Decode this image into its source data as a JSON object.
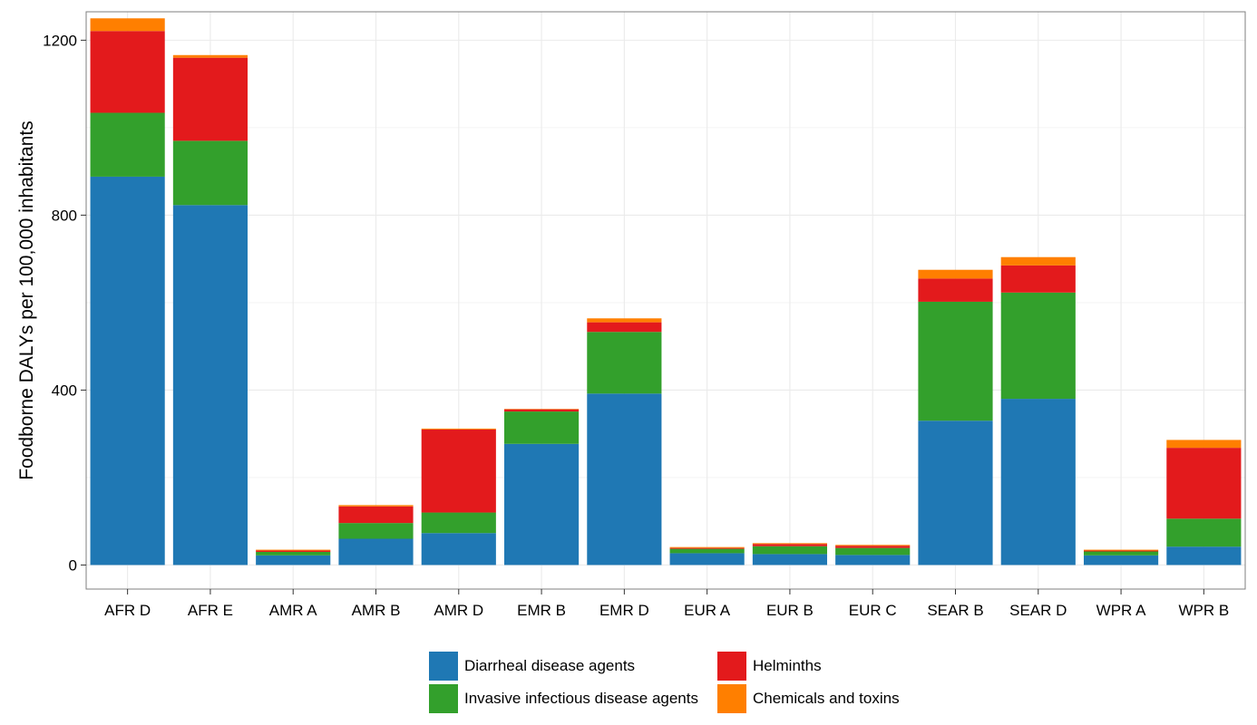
{
  "chart_data": {
    "type": "bar",
    "stacked": true,
    "ylabel": "Foodborne DALYs per 100,000 inhabitants",
    "xlabel": "",
    "ylim": [
      -55,
      1265
    ],
    "yticks": [
      0,
      400,
      800,
      1200
    ],
    "grid": true,
    "legend_position": "bottom",
    "categories": [
      "AFR D",
      "AFR E",
      "AMR A",
      "AMR B",
      "AMR D",
      "EMR B",
      "EMR D",
      "EUR A",
      "EUR B",
      "EUR C",
      "SEAR B",
      "SEAR D",
      "WPR A",
      "WPR B"
    ],
    "series": [
      {
        "name": "Diarrheal disease agents",
        "color": "#1f78b4",
        "values": [
          888,
          823,
          22,
          60,
          73,
          277,
          392,
          27,
          25,
          23,
          330,
          380,
          22,
          42
        ]
      },
      {
        "name": "Invasive infectious disease agents",
        "color": "#33a02c",
        "values": [
          146,
          147,
          8,
          36,
          47,
          74,
          141,
          10,
          18,
          16,
          272,
          243,
          9,
          64
        ]
      },
      {
        "name": "Helminths",
        "color": "#e31a1c",
        "values": [
          187,
          190,
          3,
          38,
          190,
          5,
          22,
          2,
          5,
          5,
          53,
          62,
          2,
          162
        ]
      },
      {
        "name": "Chemicals and toxins",
        "color": "#ff7f00",
        "values": [
          29,
          6,
          2,
          3,
          2,
          1,
          9,
          2,
          2,
          2,
          20,
          19,
          2,
          18
        ]
      }
    ],
    "colors": {
      "panel_border": "#7f7f7f",
      "grid": "#ebebeb"
    }
  }
}
